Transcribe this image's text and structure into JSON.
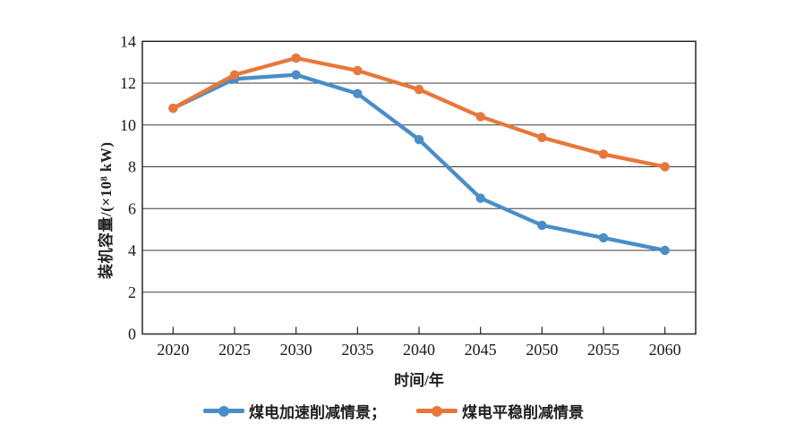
{
  "chart_data": {
    "type": "line",
    "title": "",
    "xlabel": "时间/年",
    "ylabel": "装机容量/(×10⁸ kW)",
    "categories": [
      "2020",
      "2025",
      "2030",
      "2035",
      "2040",
      "2045",
      "2050",
      "2055",
      "2060"
    ],
    "series": [
      {
        "name": "煤电加速削减情景",
        "legend_label": "煤电加速削减情景；",
        "color": "#4A8DC7",
        "values": [
          10.8,
          12.2,
          12.4,
          11.5,
          9.3,
          6.5,
          5.2,
          4.6,
          4.0
        ]
      },
      {
        "name": "煤电平稳削减情景",
        "legend_label": "煤电平稳削减情景",
        "color": "#E7773B",
        "values": [
          10.8,
          12.4,
          13.2,
          12.6,
          11.7,
          10.4,
          9.4,
          8.6,
          8.0
        ]
      }
    ],
    "ylim": [
      0,
      14
    ],
    "ytick_step": 2,
    "grid": "horizontal",
    "legend_position": "bottom",
    "axis_color": "#262626",
    "grid_color": "#3d3d3d",
    "tick_label_color": "#1a1a1a"
  }
}
